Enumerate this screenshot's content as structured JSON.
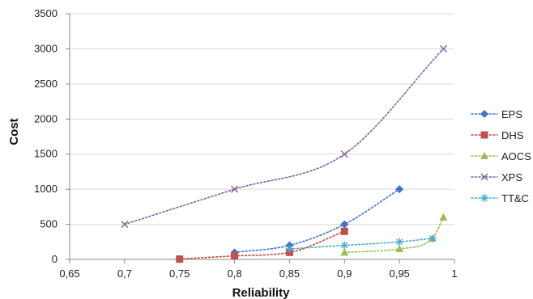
{
  "chart_data": {
    "type": "line",
    "title": "",
    "xlabel": "Reliability",
    "ylabel": "Cost",
    "xlim": [
      0.65,
      1.0
    ],
    "ylim": [
      0,
      3500
    ],
    "x_ticks": [
      "0,65",
      "0,7",
      "0,75",
      "0,8",
      "0,85",
      "0,9",
      "0,95",
      "1"
    ],
    "y_ticks": [
      "0",
      "500",
      "1000",
      "1500",
      "2000",
      "2500",
      "3000",
      "3500"
    ],
    "x_tick_values": [
      0.65,
      0.7,
      0.75,
      0.8,
      0.85,
      0.9,
      0.95,
      1.0
    ],
    "y_tick_values": [
      0,
      500,
      1000,
      1500,
      2000,
      2500,
      3000,
      3500
    ],
    "grid": "horizontal",
    "legend_position": "right",
    "series": [
      {
        "name": "EPS",
        "color": "#4472C4",
        "marker": "diamond",
        "points": [
          [
            0.8,
            100
          ],
          [
            0.85,
            200
          ],
          [
            0.9,
            500
          ],
          [
            0.95,
            1000
          ]
        ]
      },
      {
        "name": "DHS",
        "color": "#C0504D",
        "marker": "square",
        "points": [
          [
            0.75,
            5
          ],
          [
            0.8,
            50
          ],
          [
            0.85,
            100
          ],
          [
            0.9,
            400
          ]
        ]
      },
      {
        "name": "AOCS",
        "color": "#9BBB59",
        "marker": "triangle",
        "points": [
          [
            0.9,
            100
          ],
          [
            0.95,
            150
          ],
          [
            0.98,
            300
          ],
          [
            0.99,
            600
          ]
        ]
      },
      {
        "name": "XPS",
        "color": "#8064A2",
        "marker": "x",
        "points": [
          [
            0.7,
            500
          ],
          [
            0.8,
            1000
          ],
          [
            0.9,
            1500
          ],
          [
            0.99,
            3000
          ]
        ]
      },
      {
        "name": "TT&C",
        "color": "#4BACC6",
        "marker": "star",
        "points": [
          [
            0.85,
            150
          ],
          [
            0.9,
            200
          ],
          [
            0.95,
            250
          ],
          [
            0.98,
            300
          ]
        ]
      }
    ]
  }
}
